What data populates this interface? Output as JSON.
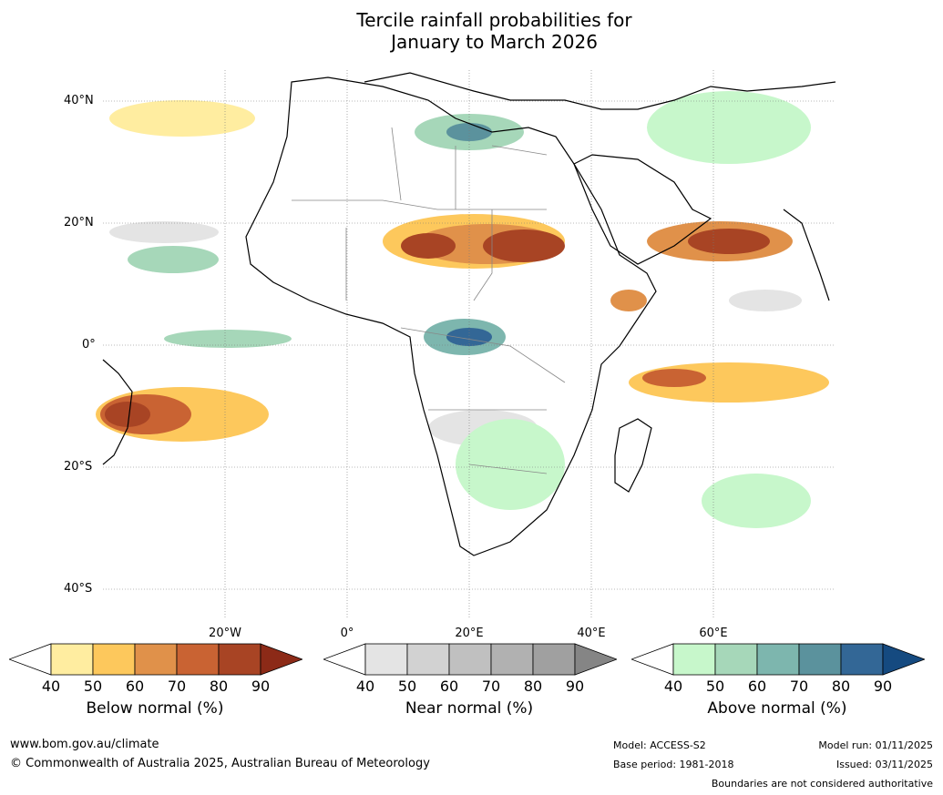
{
  "title_line1": "Tercile rainfall probabilities for",
  "title_line2": "January to March 2026",
  "lat_labels": [
    "40°N",
    "20°N",
    "0°",
    "20°S",
    "40°S"
  ],
  "lon_labels": [
    "20°W",
    "0°",
    "20°E",
    "40°E",
    "60°E"
  ],
  "colorbars": [
    {
      "title": "Below normal (%)",
      "ticks": [
        "40",
        "50",
        "60",
        "70",
        "80",
        "90"
      ],
      "colors": [
        "#ffffff",
        "#ffeda0",
        "#fdc85c",
        "#e0914a",
        "#c96333",
        "#a84424",
        "#8c2a17"
      ]
    },
    {
      "title": "Near normal (%)",
      "ticks": [
        "40",
        "50",
        "60",
        "70",
        "80",
        "90"
      ],
      "colors": [
        "#ffffff",
        "#e4e4e4",
        "#d2d2d2",
        "#c0c0c0",
        "#b1b1b1",
        "#a0a0a0",
        "#858585"
      ]
    },
    {
      "title": "Above normal (%)",
      "ticks": [
        "40",
        "50",
        "60",
        "70",
        "80",
        "90"
      ],
      "colors": [
        "#ffffff",
        "#c7f7cb",
        "#a6d7b9",
        "#7db6ae",
        "#5b929d",
        "#336796",
        "#154a80"
      ]
    }
  ],
  "footer": {
    "website": "www.bom.gov.au/climate",
    "copyright": "© Commonwealth of Australia 2025, Australian Bureau of Meteorology",
    "model": "Model: ACCESS-S2",
    "base_period": "Base period: 1981-2018",
    "model_run": "Model run: 01/11/2025",
    "issued": "Issued: 03/11/2025",
    "disclaimer": "Boundaries are not considered authoritative"
  }
}
